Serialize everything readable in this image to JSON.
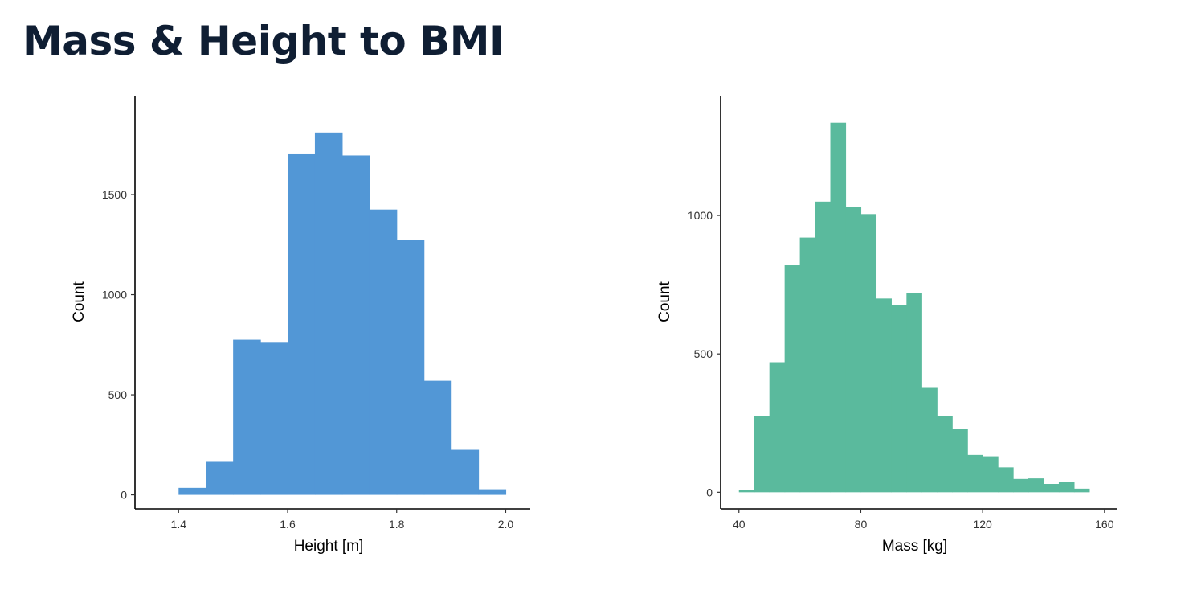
{
  "slide": {
    "title": "Mass & Height to BMI"
  },
  "chart_data": [
    {
      "type": "bar",
      "xlabel": "Height [m]",
      "ylabel": "Count",
      "xlim": [
        1.32,
        2.045
      ],
      "ylim": [
        -70,
        1990
      ],
      "xticks": [
        1.4,
        1.6,
        1.8,
        2.0
      ],
      "xtick_labels": [
        "1.4",
        "1.6",
        "1.8",
        "2.0"
      ],
      "yticks": [
        0,
        500,
        1000,
        1500
      ],
      "yticks_labels": [
        "0",
        "500",
        "1000",
        "1500"
      ],
      "bin_edges": [
        1.4,
        1.45,
        1.5,
        1.55,
        1.6,
        1.65,
        1.7,
        1.75,
        1.8,
        1.85,
        1.9,
        1.95,
        2.0
      ],
      "values": [
        35,
        165,
        775,
        760,
        1705,
        1810,
        1695,
        1425,
        1275,
        570,
        225,
        28
      ],
      "color": "#5297d6",
      "grid": false
    },
    {
      "type": "bar",
      "xlabel": "Mass [kg]",
      "ylabel": "Count",
      "xlim": [
        34,
        164
      ],
      "ylim": [
        -60,
        1430
      ],
      "xticks": [
        40,
        80,
        120,
        160
      ],
      "xtick_labels": [
        "40",
        "80",
        "120",
        "160"
      ],
      "yticks": [
        0,
        500,
        1000
      ],
      "yticks_labels": [
        "0",
        "500",
        "1000"
      ],
      "bin_edges": [
        40,
        45,
        50,
        55,
        60,
        65,
        70,
        75,
        80,
        85,
        90,
        95,
        100,
        105,
        110,
        115,
        120,
        125,
        130,
        135,
        140,
        145,
        150,
        155
      ],
      "values": [
        8,
        275,
        470,
        820,
        920,
        1050,
        1335,
        1030,
        1005,
        700,
        675,
        720,
        380,
        275,
        230,
        135,
        130,
        90,
        48,
        50,
        30,
        38,
        13
      ],
      "color": "#5aba9d",
      "grid": false
    }
  ]
}
